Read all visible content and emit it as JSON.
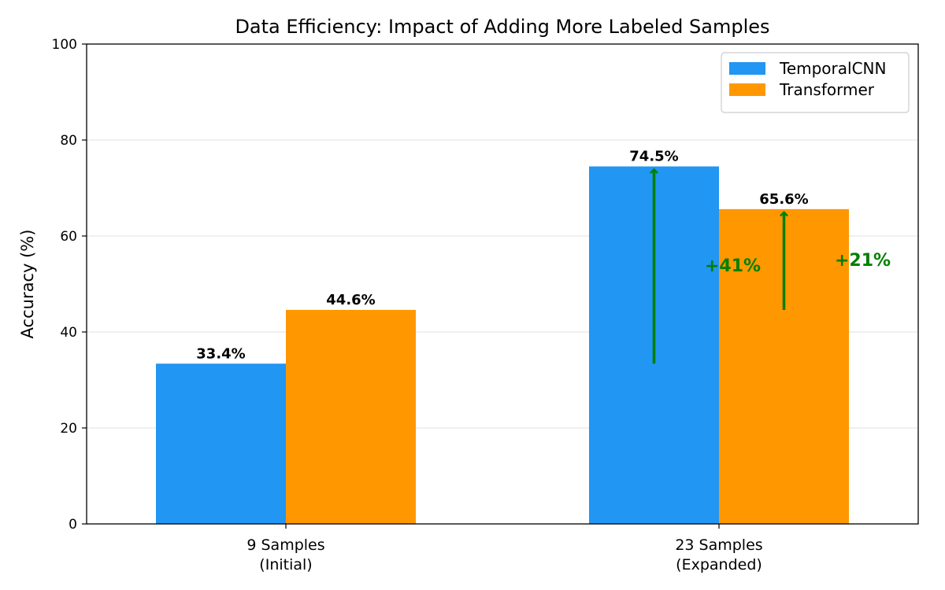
{
  "chart_data": {
    "type": "bar",
    "title": "Data Efficiency: Impact of Adding More Labeled Samples",
    "xlabel": "",
    "ylabel": "Accuracy (%)",
    "ylim": [
      0,
      100
    ],
    "yticks": [
      0,
      20,
      40,
      60,
      80,
      100
    ],
    "grid": "y",
    "legend_position": "top-right",
    "categories": [
      [
        "9 Samples",
        "(Initial)"
      ],
      [
        "23 Samples",
        "(Expanded)"
      ]
    ],
    "series": [
      {
        "name": "TemporalCNN",
        "color": "#2196F3",
        "values": [
          33.4,
          74.5
        ],
        "labels": [
          "33.4%",
          "74.5%"
        ]
      },
      {
        "name": "Transformer",
        "color": "#FF9800",
        "values": [
          44.6,
          65.6
        ],
        "labels": [
          "44.6%",
          "65.6%"
        ]
      }
    ],
    "annotations": [
      {
        "series": 0,
        "category": 1,
        "from": 33.4,
        "to": 74.5,
        "text": "+41%",
        "color": "#008000"
      },
      {
        "series": 1,
        "category": 1,
        "from": 44.6,
        "to": 65.6,
        "text": "+21%",
        "color": "#008000"
      }
    ]
  }
}
